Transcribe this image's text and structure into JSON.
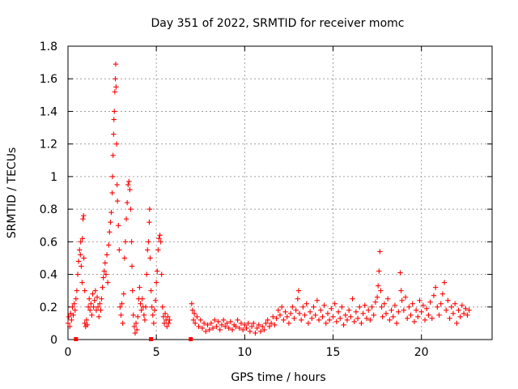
{
  "chart_data": {
    "type": "scatter",
    "title": "Day 351 of 2022, SRMTID for receiver momc",
    "xlabel": "GPS time / hours",
    "ylabel": "SRMTID / TECUs",
    "xlim": [
      0,
      24
    ],
    "ylim": [
      0,
      1.8
    ],
    "xticks": [
      0,
      5,
      10,
      15,
      20
    ],
    "xtick_labels": [
      "0",
      "5",
      "10",
      "15",
      "20"
    ],
    "yticks": [
      0,
      0.2,
      0.4,
      0.6,
      0.8,
      1,
      1.2,
      1.4,
      1.6,
      1.8
    ],
    "ytick_labels": [
      "0",
      "0.2",
      "0.4",
      "0.6",
      "0.8",
      "1",
      "1.2",
      "1.4",
      "1.6",
      "1.8"
    ],
    "grid": true,
    "marker": "plus",
    "series": [
      {
        "name": "SRMTID",
        "color": "#ff0000",
        "points": [
          [
            0.0,
            0.1
          ],
          [
            0.05,
            0.14
          ],
          [
            0.1,
            0.08
          ],
          [
            0.15,
            0.16
          ],
          [
            0.2,
            0.12
          ],
          [
            0.25,
            0.2
          ],
          [
            0.3,
            0.15
          ],
          [
            0.35,
            0.22
          ],
          [
            0.4,
            0.18
          ],
          [
            0.45,
            0.25
          ],
          [
            0.5,
            0.3
          ],
          [
            0.55,
            0.4
          ],
          [
            0.6,
            0.48
          ],
          [
            0.65,
            0.55
          ],
          [
            0.7,
            0.52
          ],
          [
            0.72,
            0.6
          ],
          [
            0.75,
            0.45
          ],
          [
            0.8,
            0.35
          ],
          [
            0.82,
            0.62
          ],
          [
            0.85,
            0.74
          ],
          [
            0.88,
            0.76
          ],
          [
            0.9,
            0.5
          ],
          [
            0.95,
            0.3
          ],
          [
            0.95,
            0.1
          ],
          [
            1.0,
            0.08
          ],
          [
            1.05,
            0.12
          ],
          [
            1.1,
            0.09
          ],
          [
            1.15,
            0.2
          ],
          [
            1.2,
            0.25
          ],
          [
            1.25,
            0.18
          ],
          [
            1.3,
            0.22
          ],
          [
            1.35,
            0.15
          ],
          [
            1.4,
            0.28
          ],
          [
            1.45,
            0.2
          ],
          [
            1.5,
            0.24
          ],
          [
            1.55,
            0.3
          ],
          [
            1.6,
            0.18
          ],
          [
            1.65,
            0.26
          ],
          [
            1.7,
            0.2
          ],
          [
            1.75,
            0.14
          ],
          [
            1.8,
            0.22
          ],
          [
            1.85,
            0.18
          ],
          [
            1.9,
            0.25
          ],
          [
            1.95,
            0.32
          ],
          [
            2.0,
            0.38
          ],
          [
            2.05,
            0.42
          ],
          [
            2.1,
            0.47
          ],
          [
            2.15,
            0.4
          ],
          [
            2.2,
            0.52
          ],
          [
            2.25,
            0.35
          ],
          [
            2.3,
            0.58
          ],
          [
            2.35,
            0.66
          ],
          [
            2.4,
            0.72
          ],
          [
            2.45,
            0.78
          ],
          [
            2.5,
            0.9
          ],
          [
            2.52,
            1.0
          ],
          [
            2.55,
            1.13
          ],
          [
            2.58,
            1.26
          ],
          [
            2.6,
            1.35
          ],
          [
            2.62,
            1.4
          ],
          [
            2.65,
            1.52
          ],
          [
            2.68,
            1.6
          ],
          [
            2.7,
            1.69
          ],
          [
            2.72,
            1.55
          ],
          [
            2.75,
            1.2
          ],
          [
            2.78,
            0.95
          ],
          [
            2.8,
            0.85
          ],
          [
            2.85,
            0.7
          ],
          [
            2.9,
            0.55
          ],
          [
            2.95,
            0.2
          ],
          [
            3.0,
            0.15
          ],
          [
            3.05,
            0.22
          ],
          [
            3.1,
            0.1
          ],
          [
            3.15,
            0.28
          ],
          [
            3.2,
            0.5
          ],
          [
            3.25,
            0.6
          ],
          [
            3.3,
            0.74
          ],
          [
            3.35,
            0.84
          ],
          [
            3.4,
            0.95
          ],
          [
            3.45,
            0.97
          ],
          [
            3.5,
            0.92
          ],
          [
            3.55,
            0.8
          ],
          [
            3.6,
            0.6
          ],
          [
            3.62,
            0.45
          ],
          [
            3.65,
            0.3
          ],
          [
            3.7,
            0.15
          ],
          [
            3.75,
            0.08
          ],
          [
            3.8,
            0.04
          ],
          [
            3.85,
            0.1
          ],
          [
            3.9,
            0.06
          ],
          [
            3.95,
            0.14
          ],
          [
            4.0,
            0.25
          ],
          [
            4.05,
            0.32
          ],
          [
            4.1,
            0.22
          ],
          [
            4.15,
            0.18
          ],
          [
            4.2,
            0.25
          ],
          [
            4.25,
            0.2
          ],
          [
            4.3,
            0.15
          ],
          [
            4.35,
            0.12
          ],
          [
            4.4,
            0.2
          ],
          [
            4.45,
            0.4
          ],
          [
            4.5,
            0.55
          ],
          [
            4.55,
            0.6
          ],
          [
            4.6,
            0.72
          ],
          [
            4.62,
            0.8
          ],
          [
            4.65,
            0.5
          ],
          [
            4.7,
            0.3
          ],
          [
            4.75,
            0.2
          ],
          [
            4.8,
            0.15
          ],
          [
            4.85,
            0.1
          ],
          [
            4.9,
            0.18
          ],
          [
            4.95,
            0.24
          ],
          [
            5.0,
            0.35
          ],
          [
            5.05,
            0.42
          ],
          [
            5.1,
            0.55
          ],
          [
            5.15,
            0.62
          ],
          [
            5.2,
            0.64
          ],
          [
            5.25,
            0.6
          ],
          [
            5.3,
            0.4
          ],
          [
            5.35,
            0.2
          ],
          [
            5.4,
            0.14
          ],
          [
            5.45,
            0.1
          ],
          [
            5.5,
            0.16
          ],
          [
            5.55,
            0.12
          ],
          [
            5.6,
            0.08
          ],
          [
            5.65,
            0.14
          ],
          [
            5.7,
            0.1
          ],
          [
            5.75,
            0.12
          ],
          [
            7.0,
            0.22
          ],
          [
            7.05,
            0.18
          ],
          [
            7.1,
            0.12
          ],
          [
            7.15,
            0.16
          ],
          [
            7.2,
            0.1
          ],
          [
            7.3,
            0.14
          ],
          [
            7.4,
            0.08
          ],
          [
            7.5,
            0.12
          ],
          [
            7.6,
            0.07
          ],
          [
            7.7,
            0.1
          ],
          [
            7.8,
            0.05
          ],
          [
            7.9,
            0.09
          ],
          [
            8.0,
            0.06
          ],
          [
            8.1,
            0.1
          ],
          [
            8.2,
            0.07
          ],
          [
            8.3,
            0.12
          ],
          [
            8.4,
            0.08
          ],
          [
            8.5,
            0.11
          ],
          [
            8.6,
            0.06
          ],
          [
            8.7,
            0.09
          ],
          [
            8.8,
            0.12
          ],
          [
            8.9,
            0.08
          ],
          [
            9.0,
            0.1
          ],
          [
            9.1,
            0.07
          ],
          [
            9.2,
            0.11
          ],
          [
            9.3,
            0.06
          ],
          [
            9.4,
            0.09
          ],
          [
            9.5,
            0.08
          ],
          [
            9.6,
            0.12
          ],
          [
            9.7,
            0.07
          ],
          [
            9.8,
            0.1
          ],
          [
            9.9,
            0.06
          ],
          [
            10.0,
            0.09
          ],
          [
            10.1,
            0.07
          ],
          [
            10.2,
            0.1
          ],
          [
            10.3,
            0.05
          ],
          [
            10.4,
            0.08
          ],
          [
            10.5,
            0.1
          ],
          [
            10.6,
            0.04
          ],
          [
            10.7,
            0.07
          ],
          [
            10.8,
            0.09
          ],
          [
            10.9,
            0.05
          ],
          [
            11.0,
            0.08
          ],
          [
            11.1,
            0.06
          ],
          [
            11.2,
            0.1
          ],
          [
            11.3,
            0.12
          ],
          [
            11.4,
            0.08
          ],
          [
            11.5,
            0.1
          ],
          [
            11.6,
            0.14
          ],
          [
            11.7,
            0.09
          ],
          [
            11.8,
            0.13
          ],
          [
            11.9,
            0.18
          ],
          [
            12.0,
            0.15
          ],
          [
            12.1,
            0.2
          ],
          [
            12.2,
            0.12
          ],
          [
            12.3,
            0.17
          ],
          [
            12.4,
            0.14
          ],
          [
            12.5,
            0.1
          ],
          [
            12.6,
            0.16
          ],
          [
            12.7,
            0.2
          ],
          [
            12.8,
            0.13
          ],
          [
            12.9,
            0.18
          ],
          [
            13.0,
            0.25
          ],
          [
            13.05,
            0.3
          ],
          [
            13.1,
            0.16
          ],
          [
            13.2,
            0.12
          ],
          [
            13.3,
            0.2
          ],
          [
            13.4,
            0.15
          ],
          [
            13.5,
            0.22
          ],
          [
            13.6,
            0.1
          ],
          [
            13.7,
            0.17
          ],
          [
            13.8,
            0.13
          ],
          [
            13.9,
            0.2
          ],
          [
            14.0,
            0.15
          ],
          [
            14.1,
            0.24
          ],
          [
            14.2,
            0.12
          ],
          [
            14.3,
            0.18
          ],
          [
            14.4,
            0.14
          ],
          [
            14.5,
            0.21
          ],
          [
            14.6,
            0.1
          ],
          [
            14.7,
            0.16
          ],
          [
            14.8,
            0.12
          ],
          [
            14.9,
            0.19
          ],
          [
            15.0,
            0.14
          ],
          [
            15.1,
            0.22
          ],
          [
            15.2,
            0.11
          ],
          [
            15.3,
            0.17
          ],
          [
            15.4,
            0.13
          ],
          [
            15.5,
            0.2
          ],
          [
            15.6,
            0.09
          ],
          [
            15.7,
            0.15
          ],
          [
            15.8,
            0.12
          ],
          [
            15.9,
            0.18
          ],
          [
            16.0,
            0.14
          ],
          [
            16.1,
            0.25
          ],
          [
            16.2,
            0.11
          ],
          [
            16.3,
            0.17
          ],
          [
            16.4,
            0.13
          ],
          [
            16.5,
            0.2
          ],
          [
            16.6,
            0.1
          ],
          [
            16.7,
            0.16
          ],
          [
            16.8,
            0.21
          ],
          [
            16.9,
            0.13
          ],
          [
            17.0,
            0.18
          ],
          [
            17.1,
            0.12
          ],
          [
            17.2,
            0.2
          ],
          [
            17.3,
            0.15
          ],
          [
            17.4,
            0.23
          ],
          [
            17.5,
            0.26
          ],
          [
            17.55,
            0.33
          ],
          [
            17.6,
            0.42
          ],
          [
            17.65,
            0.54
          ],
          [
            17.7,
            0.3
          ],
          [
            17.75,
            0.2
          ],
          [
            17.8,
            0.14
          ],
          [
            17.9,
            0.22
          ],
          [
            18.0,
            0.16
          ],
          [
            18.1,
            0.25
          ],
          [
            18.2,
            0.12
          ],
          [
            18.3,
            0.18
          ],
          [
            18.4,
            0.14
          ],
          [
            18.5,
            0.21
          ],
          [
            18.6,
            0.1
          ],
          [
            18.7,
            0.17
          ],
          [
            18.8,
            0.41
          ],
          [
            18.85,
            0.3
          ],
          [
            18.9,
            0.24
          ],
          [
            19.0,
            0.18
          ],
          [
            19.1,
            0.26
          ],
          [
            19.2,
            0.13
          ],
          [
            19.3,
            0.2
          ],
          [
            19.4,
            0.15
          ],
          [
            19.5,
            0.22
          ],
          [
            19.6,
            0.11
          ],
          [
            19.7,
            0.18
          ],
          [
            19.8,
            0.14
          ],
          [
            19.9,
            0.24
          ],
          [
            20.0,
            0.17
          ],
          [
            20.1,
            0.21
          ],
          [
            20.2,
            0.12
          ],
          [
            20.3,
            0.19
          ],
          [
            20.4,
            0.15
          ],
          [
            20.5,
            0.23
          ],
          [
            20.6,
            0.13
          ],
          [
            20.7,
            0.27
          ],
          [
            20.8,
            0.32
          ],
          [
            20.9,
            0.2
          ],
          [
            21.0,
            0.15
          ],
          [
            21.1,
            0.22
          ],
          [
            21.2,
            0.28
          ],
          [
            21.3,
            0.35
          ],
          [
            21.4,
            0.18
          ],
          [
            21.5,
            0.24
          ],
          [
            21.6,
            0.13
          ],
          [
            21.7,
            0.2
          ],
          [
            21.8,
            0.16
          ],
          [
            21.9,
            0.22
          ],
          [
            22.0,
            0.1
          ],
          [
            22.1,
            0.18
          ],
          [
            22.2,
            0.14
          ],
          [
            22.3,
            0.21
          ],
          [
            22.4,
            0.16
          ],
          [
            22.5,
            0.19
          ],
          [
            22.6,
            0.15
          ],
          [
            22.7,
            0.18
          ]
        ]
      }
    ],
    "zero_markers": [
      [
        0.45,
        0.0
      ],
      [
        4.7,
        0.0
      ],
      [
        6.95,
        0.0
      ]
    ]
  }
}
